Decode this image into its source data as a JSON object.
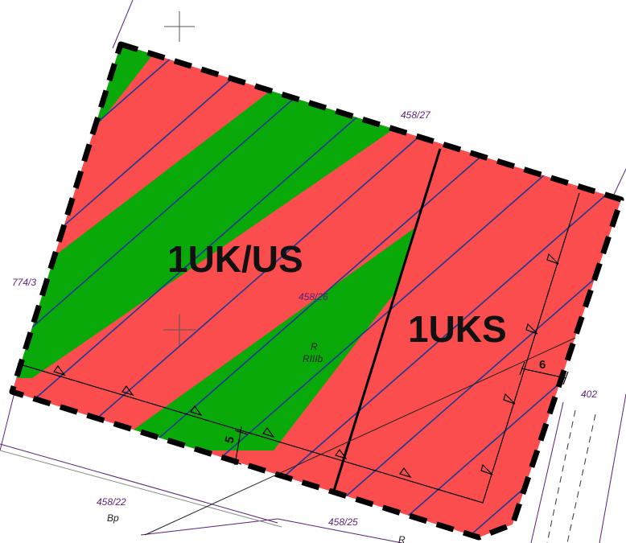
{
  "colors": {
    "zone_red": "#fb4d4d",
    "zone_green": "#08a908",
    "hatch_blue": "#1f3a93",
    "border_black": "#000000",
    "parcel_line": "#5a1f7a",
    "parcel_text": "#5a1f7a"
  },
  "zones": {
    "left": "1UK/US",
    "right": "1UKS"
  },
  "parcels": {
    "p1": "458/27",
    "p2": "774/3",
    "p3": "458/26",
    "p4": "402",
    "p5": "458/22",
    "p6": "458/25"
  },
  "land_use": {
    "center_top": "R",
    "center_bottom": "RIIIb",
    "left_bottom": "Bp",
    "bottom": "R"
  },
  "dimensions": {
    "left": "5",
    "right": "6"
  },
  "icons": [
    "crosshair-icon",
    "triangle-marker-icon"
  ]
}
